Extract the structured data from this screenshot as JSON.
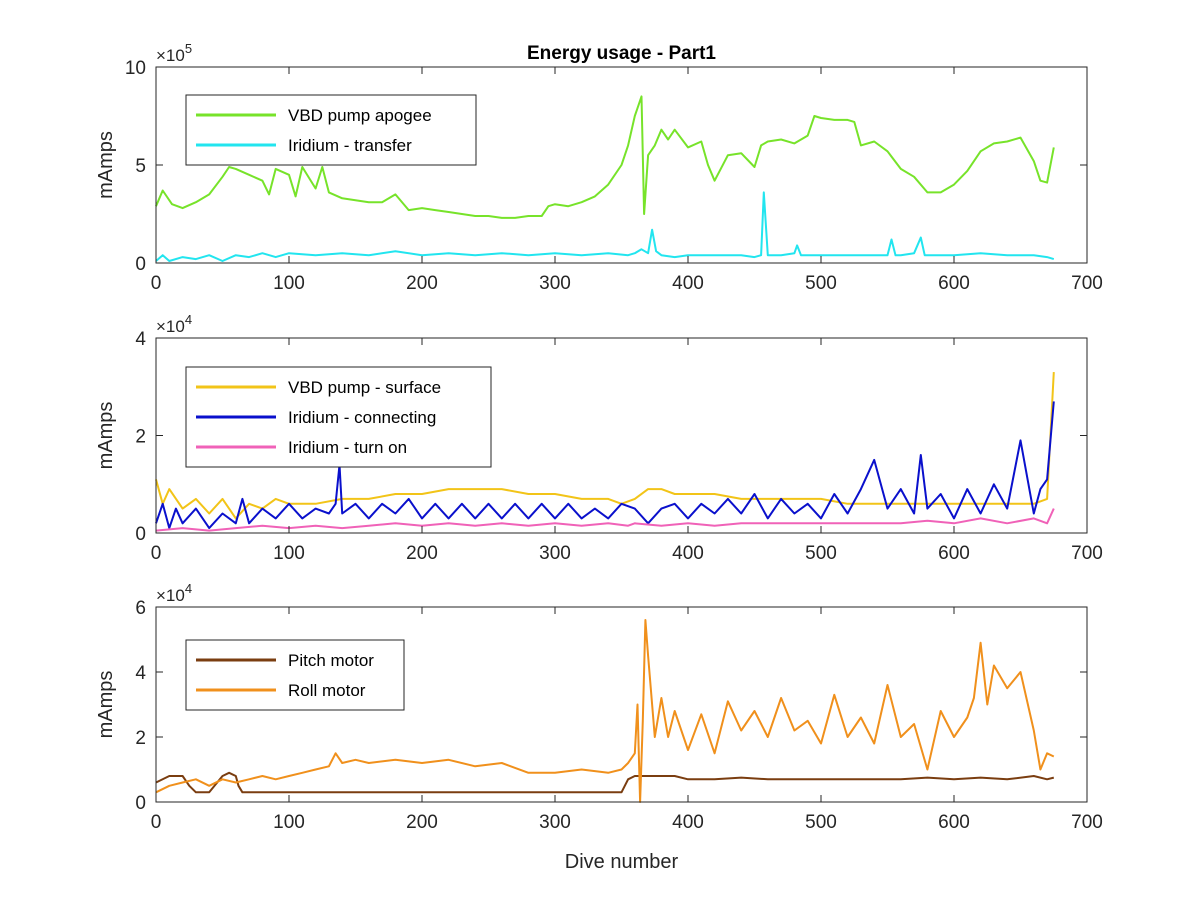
{
  "chart_data": [
    {
      "type": "line",
      "title": "Energy usage - Part1",
      "xlabel": "",
      "ylabel": "mAmps",
      "xlim": [
        0,
        700
      ],
      "ylim": [
        0,
        10
      ],
      "y_exponent": "×10",
      "y_exponent_power": "5",
      "xticks": [
        "0",
        "100",
        "200",
        "300",
        "400",
        "500",
        "600",
        "700"
      ],
      "yticks": [
        "0",
        "5",
        "10"
      ],
      "legend_position": "top-left",
      "series": [
        {
          "name": "VBD pump apogee",
          "color": "#77e32a",
          "x": [
            0,
            5,
            12,
            20,
            30,
            40,
            50,
            55,
            60,
            70,
            80,
            85,
            90,
            100,
            105,
            110,
            120,
            125,
            130,
            140,
            150,
            160,
            170,
            180,
            190,
            200,
            210,
            220,
            230,
            240,
            250,
            260,
            270,
            280,
            290,
            295,
            300,
            310,
            320,
            330,
            340,
            350,
            355,
            360,
            365,
            367,
            370,
            375,
            380,
            385,
            390,
            400,
            410,
            415,
            420,
            430,
            440,
            450,
            455,
            460,
            470,
            480,
            490,
            495,
            500,
            510,
            520,
            525,
            530,
            540,
            550,
            560,
            570,
            580,
            590,
            600,
            610,
            620,
            630,
            640,
            650,
            660,
            665,
            670,
            675
          ],
          "values": [
            2.9,
            3.7,
            3.0,
            2.8,
            3.1,
            3.5,
            4.4,
            4.9,
            4.8,
            4.5,
            4.2,
            3.5,
            4.8,
            4.5,
            3.4,
            4.9,
            3.8,
            4.9,
            3.6,
            3.3,
            3.2,
            3.1,
            3.1,
            3.5,
            2.7,
            2.8,
            2.7,
            2.6,
            2.5,
            2.4,
            2.4,
            2.3,
            2.3,
            2.4,
            2.4,
            2.9,
            3.0,
            2.9,
            3.1,
            3.4,
            4.0,
            5.0,
            6.0,
            7.5,
            8.5,
            2.5,
            5.5,
            6.0,
            6.8,
            6.3,
            6.8,
            5.9,
            6.2,
            5.0,
            4.2,
            5.5,
            5.6,
            4.9,
            6.0,
            6.2,
            6.3,
            6.1,
            6.5,
            7.5,
            7.4,
            7.3,
            7.3,
            7.2,
            6.0,
            6.2,
            5.7,
            4.8,
            4.4,
            3.6,
            3.6,
            4.0,
            4.7,
            5.7,
            6.1,
            6.2,
            6.4,
            5.2,
            4.2,
            4.1,
            5.9
          ]
        },
        {
          "name": "Iridium - transfer",
          "color": "#22e5ef",
          "x": [
            0,
            5,
            10,
            20,
            30,
            40,
            50,
            60,
            70,
            80,
            90,
            100,
            120,
            140,
            160,
            180,
            200,
            220,
            240,
            260,
            280,
            300,
            320,
            340,
            355,
            360,
            365,
            370,
            373,
            376,
            380,
            390,
            400,
            420,
            440,
            450,
            455,
            457,
            460,
            470,
            480,
            482,
            485,
            500,
            520,
            540,
            550,
            553,
            556,
            560,
            570,
            575,
            578,
            580,
            600,
            620,
            640,
            660,
            670,
            675
          ],
          "values": [
            0.1,
            0.4,
            0.1,
            0.3,
            0.2,
            0.4,
            0.1,
            0.4,
            0.3,
            0.5,
            0.3,
            0.5,
            0.4,
            0.5,
            0.4,
            0.6,
            0.4,
            0.5,
            0.4,
            0.5,
            0.4,
            0.5,
            0.4,
            0.5,
            0.4,
            0.5,
            0.7,
            0.5,
            1.7,
            0.6,
            0.4,
            0.3,
            0.4,
            0.4,
            0.4,
            0.3,
            0.4,
            3.6,
            0.4,
            0.4,
            0.5,
            0.9,
            0.4,
            0.4,
            0.4,
            0.4,
            0.4,
            1.2,
            0.4,
            0.4,
            0.5,
            1.3,
            0.4,
            0.4,
            0.4,
            0.5,
            0.4,
            0.4,
            0.3,
            0.2
          ]
        }
      ]
    },
    {
      "type": "line",
      "title": "",
      "xlabel": "",
      "ylabel": "mAmps",
      "xlim": [
        0,
        700
      ],
      "ylim": [
        0,
        4
      ],
      "y_exponent": "×10",
      "y_exponent_power": "4",
      "xticks": [
        "0",
        "100",
        "200",
        "300",
        "400",
        "500",
        "600",
        "700"
      ],
      "yticks": [
        "0",
        "2",
        "4"
      ],
      "legend_position": "top-left",
      "series": [
        {
          "name": "VBD pump - surface",
          "color": "#f2c418",
          "x": [
            0,
            5,
            10,
            20,
            30,
            40,
            50,
            60,
            70,
            80,
            90,
            100,
            120,
            140,
            160,
            180,
            200,
            220,
            240,
            260,
            280,
            300,
            320,
            340,
            350,
            360,
            370,
            380,
            390,
            400,
            420,
            440,
            460,
            480,
            500,
            520,
            540,
            560,
            580,
            600,
            620,
            640,
            660,
            670,
            675
          ],
          "values": [
            1.1,
            0.6,
            0.9,
            0.5,
            0.7,
            0.4,
            0.7,
            0.3,
            0.6,
            0.5,
            0.7,
            0.6,
            0.6,
            0.7,
            0.7,
            0.8,
            0.8,
            0.9,
            0.9,
            0.9,
            0.8,
            0.8,
            0.7,
            0.7,
            0.6,
            0.7,
            0.9,
            0.9,
            0.8,
            0.8,
            0.8,
            0.7,
            0.7,
            0.7,
            0.7,
            0.6,
            0.6,
            0.6,
            0.6,
            0.6,
            0.6,
            0.6,
            0.6,
            0.7,
            3.3
          ]
        },
        {
          "name": "Iridium - connecting",
          "color": "#0a10cc",
          "x": [
            0,
            5,
            10,
            15,
            20,
            30,
            40,
            50,
            60,
            65,
            70,
            80,
            90,
            100,
            110,
            120,
            130,
            135,
            138,
            140,
            150,
            160,
            170,
            180,
            190,
            200,
            210,
            220,
            230,
            240,
            250,
            260,
            270,
            280,
            290,
            300,
            310,
            320,
            330,
            340,
            350,
            360,
            370,
            380,
            390,
            400,
            410,
            420,
            430,
            440,
            450,
            460,
            470,
            480,
            490,
            500,
            510,
            520,
            530,
            540,
            550,
            560,
            570,
            575,
            580,
            590,
            600,
            610,
            620,
            630,
            640,
            650,
            660,
            665,
            670,
            675
          ],
          "values": [
            0.2,
            0.6,
            0.1,
            0.5,
            0.2,
            0.5,
            0.1,
            0.4,
            0.2,
            0.7,
            0.2,
            0.5,
            0.3,
            0.6,
            0.3,
            0.5,
            0.4,
            0.6,
            1.4,
            0.4,
            0.6,
            0.3,
            0.6,
            0.4,
            0.7,
            0.3,
            0.6,
            0.3,
            0.6,
            0.3,
            0.6,
            0.3,
            0.6,
            0.3,
            0.6,
            0.3,
            0.6,
            0.3,
            0.5,
            0.3,
            0.6,
            0.5,
            0.2,
            0.5,
            0.6,
            0.3,
            0.6,
            0.4,
            0.7,
            0.4,
            0.8,
            0.3,
            0.7,
            0.4,
            0.6,
            0.3,
            0.8,
            0.4,
            0.9,
            1.5,
            0.5,
            0.9,
            0.4,
            1.6,
            0.5,
            0.8,
            0.3,
            0.9,
            0.4,
            1.0,
            0.5,
            1.9,
            0.4,
            0.9,
            1.1,
            2.7
          ]
        },
        {
          "name": "Iridium - turn on",
          "color": "#f062b8",
          "x": [
            0,
            20,
            40,
            60,
            80,
            100,
            120,
            140,
            160,
            180,
            200,
            220,
            240,
            260,
            280,
            300,
            320,
            340,
            355,
            360,
            380,
            400,
            420,
            440,
            460,
            480,
            500,
            520,
            540,
            560,
            580,
            600,
            620,
            640,
            660,
            670,
            675
          ],
          "values": [
            0.05,
            0.1,
            0.05,
            0.1,
            0.15,
            0.1,
            0.15,
            0.1,
            0.15,
            0.2,
            0.15,
            0.2,
            0.15,
            0.2,
            0.15,
            0.2,
            0.15,
            0.2,
            0.15,
            0.2,
            0.15,
            0.2,
            0.15,
            0.2,
            0.2,
            0.2,
            0.2,
            0.2,
            0.2,
            0.2,
            0.25,
            0.2,
            0.3,
            0.2,
            0.3,
            0.2,
            0.5
          ]
        }
      ]
    },
    {
      "type": "line",
      "title": "",
      "xlabel": "Dive number",
      "ylabel": "mAmps",
      "xlim": [
        0,
        700
      ],
      "ylim": [
        0,
        6
      ],
      "y_exponent": "×10",
      "y_exponent_power": "4",
      "xticks": [
        "0",
        "100",
        "200",
        "300",
        "400",
        "500",
        "600",
        "700"
      ],
      "yticks": [
        "0",
        "2",
        "4",
        "6"
      ],
      "legend_position": "top-left",
      "series": [
        {
          "name": "Pitch motor",
          "color": "#7a3d10",
          "x": [
            0,
            10,
            20,
            25,
            30,
            40,
            50,
            55,
            60,
            62,
            65,
            80,
            100,
            120,
            140,
            160,
            180,
            200,
            220,
            240,
            260,
            280,
            300,
            320,
            340,
            350,
            355,
            360,
            370,
            380,
            390,
            400,
            420,
            440,
            460,
            480,
            500,
            520,
            540,
            560,
            580,
            600,
            620,
            640,
            660,
            670,
            675
          ],
          "values": [
            0.6,
            0.8,
            0.8,
            0.5,
            0.3,
            0.3,
            0.8,
            0.9,
            0.8,
            0.5,
            0.3,
            0.3,
            0.3,
            0.3,
            0.3,
            0.3,
            0.3,
            0.3,
            0.3,
            0.3,
            0.3,
            0.3,
            0.3,
            0.3,
            0.3,
            0.3,
            0.7,
            0.8,
            0.8,
            0.8,
            0.8,
            0.7,
            0.7,
            0.75,
            0.7,
            0.7,
            0.7,
            0.7,
            0.7,
            0.7,
            0.75,
            0.7,
            0.75,
            0.7,
            0.8,
            0.7,
            0.75
          ]
        },
        {
          "name": "Roll motor",
          "color": "#f0901c",
          "x": [
            0,
            10,
            20,
            30,
            40,
            50,
            60,
            70,
            80,
            90,
            100,
            110,
            120,
            130,
            135,
            140,
            150,
            160,
            180,
            200,
            220,
            240,
            260,
            280,
            300,
            320,
            340,
            350,
            355,
            360,
            362,
            364,
            366,
            368,
            370,
            375,
            380,
            385,
            390,
            400,
            410,
            420,
            430,
            440,
            450,
            460,
            470,
            480,
            490,
            500,
            510,
            520,
            530,
            540,
            550,
            560,
            570,
            580,
            590,
            600,
            610,
            615,
            620,
            625,
            630,
            640,
            650,
            660,
            665,
            670,
            675
          ],
          "values": [
            0.3,
            0.5,
            0.6,
            0.7,
            0.5,
            0.7,
            0.6,
            0.7,
            0.8,
            0.7,
            0.8,
            0.9,
            1.0,
            1.1,
            1.5,
            1.2,
            1.3,
            1.2,
            1.3,
            1.2,
            1.3,
            1.1,
            1.2,
            0.9,
            0.9,
            1.0,
            0.9,
            1.0,
            1.2,
            1.5,
            3.0,
            0.0,
            2.5,
            5.6,
            4.5,
            2.0,
            3.2,
            2.0,
            2.8,
            1.6,
            2.7,
            1.5,
            3.1,
            2.2,
            2.8,
            2.0,
            3.2,
            2.2,
            2.5,
            1.8,
            3.3,
            2.0,
            2.6,
            1.8,
            3.6,
            2.0,
            2.4,
            1.0,
            2.8,
            2.0,
            2.6,
            3.2,
            4.9,
            3.0,
            4.2,
            3.5,
            4.0,
            2.2,
            1.0,
            1.5,
            1.4
          ]
        }
      ]
    }
  ]
}
